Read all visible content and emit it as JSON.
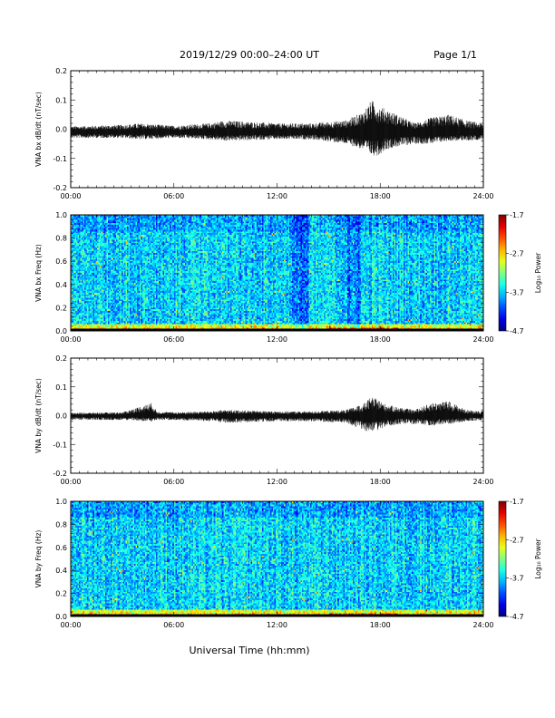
{
  "header": {
    "title": "2019/12/29  00:00–24:00 UT",
    "page": "Page 1/1"
  },
  "x_axis": {
    "label": "Universal Time (hh:mm)",
    "range_hours": [
      0,
      24
    ],
    "ticks": [
      "00:00",
      "06:00",
      "12:00",
      "18:00",
      "24:00"
    ]
  },
  "colorbar": {
    "label": "Log₁₀ Power",
    "range": [
      -4.7,
      -1.7
    ],
    "ticks": [
      "-1.7",
      "-2.7",
      "-3.7",
      "-4.7"
    ]
  },
  "chart_data": [
    {
      "type": "line",
      "ylabel": "VNA bx dB/dt (nT/sec)",
      "ylim": [
        -0.2,
        0.2
      ],
      "yticks": [
        "0.2",
        "0.1",
        "0.0",
        "-0.1",
        "-0.2"
      ],
      "xlim": [
        "00:00",
        "24:00"
      ],
      "baseline": -0.01,
      "envelope": {
        "time_hours": [
          0,
          3,
          4,
          6,
          8,
          9,
          12,
          14,
          16,
          17,
          17.5,
          17.9,
          18.3,
          19,
          20,
          21,
          22,
          23,
          24
        ],
        "max": [
          0.01,
          0.015,
          0.02,
          0.012,
          0.02,
          0.03,
          0.02,
          0.02,
          0.03,
          0.06,
          0.1,
          0.08,
          0.07,
          0.05,
          0.02,
          0.04,
          0.05,
          0.03,
          0.02
        ],
        "min": [
          -0.03,
          -0.03,
          -0.035,
          -0.03,
          -0.035,
          -0.04,
          -0.035,
          -0.035,
          -0.05,
          -0.07,
          -0.09,
          -0.09,
          -0.07,
          -0.06,
          -0.05,
          -0.05,
          -0.04,
          -0.04,
          -0.035
        ]
      }
    },
    {
      "type": "heatmap",
      "ylabel": "VNA bx Freq (Hz)",
      "ylim": [
        0.0,
        1.0
      ],
      "yticks": [
        "1.0",
        "0.8",
        "0.6",
        "0.4",
        "0.2",
        "0.0"
      ],
      "xlim": [
        "00:00",
        "24:00"
      ],
      "zlim": [
        -4.7,
        -1.7
      ]
    },
    {
      "type": "line",
      "ylabel": "VNA by dB/dt (nT/sec)",
      "ylim": [
        -0.2,
        0.2
      ],
      "yticks": [
        "0.2",
        "0.1",
        "0.0",
        "-0.1",
        "-0.2"
      ],
      "xlim": [
        "00:00",
        "24:00"
      ],
      "baseline": 0.0,
      "envelope": {
        "time_hours": [
          0,
          3,
          4.7,
          5,
          6,
          8,
          9,
          12,
          14,
          16,
          17,
          17.5,
          17.9,
          18.3,
          19,
          20,
          21,
          22,
          23,
          24
        ],
        "max": [
          0.01,
          0.012,
          0.045,
          0.015,
          0.012,
          0.015,
          0.02,
          0.015,
          0.015,
          0.02,
          0.04,
          0.065,
          0.055,
          0.04,
          0.03,
          0.02,
          0.045,
          0.05,
          0.02,
          0.015
        ],
        "min": [
          -0.015,
          -0.015,
          -0.02,
          -0.015,
          -0.015,
          -0.02,
          -0.025,
          -0.02,
          -0.02,
          -0.025,
          -0.05,
          -0.06,
          -0.05,
          -0.04,
          -0.03,
          -0.03,
          -0.035,
          -0.03,
          -0.02,
          -0.015
        ]
      }
    },
    {
      "type": "heatmap",
      "ylabel": "VNA by Freq (Hz)",
      "ylim": [
        0.0,
        1.0
      ],
      "yticks": [
        "1.0",
        "0.8",
        "0.6",
        "0.4",
        "0.2",
        "0.0"
      ],
      "xlim": [
        "00:00",
        "24:00"
      ],
      "zlim": [
        -4.7,
        -1.7
      ]
    }
  ]
}
